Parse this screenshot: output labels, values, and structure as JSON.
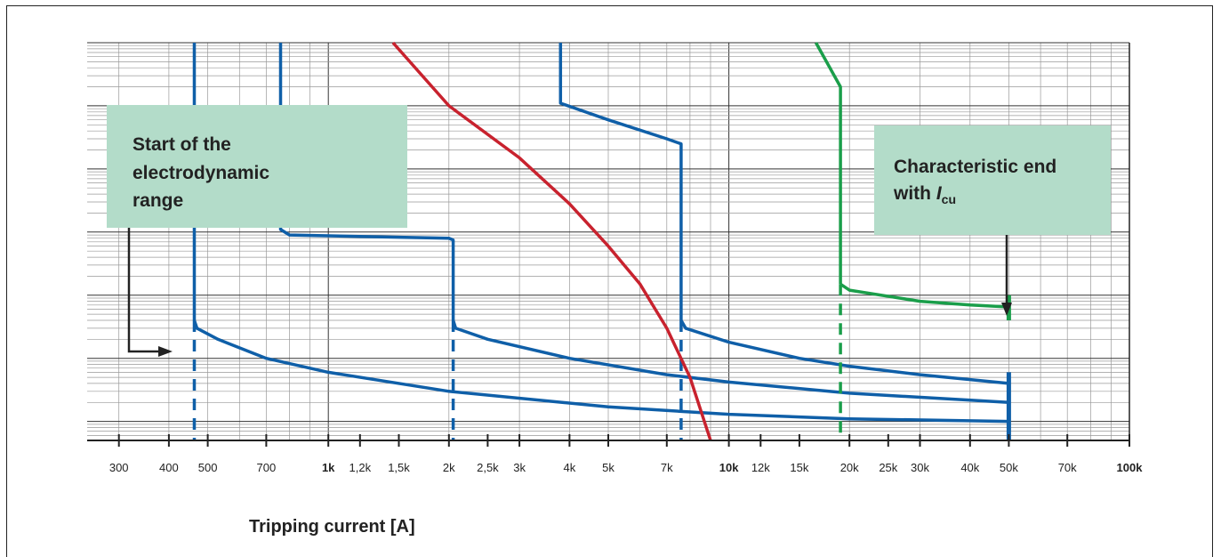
{
  "chart_data": {
    "type": "line",
    "title": "",
    "xlabel": "Tripping current [A]",
    "ylabel": "",
    "x_scale": "log",
    "xlim": [
      250,
      100000
    ],
    "y_scale": "log",
    "ylim": [
      0.0005,
      1000
    ],
    "grid": true,
    "x_tick_labels": [
      {
        "value": 300,
        "label": "300",
        "bold": false
      },
      {
        "value": 400,
        "label": "400",
        "bold": false
      },
      {
        "value": 500,
        "label": "500",
        "bold": false
      },
      {
        "value": 700,
        "label": "700",
        "bold": false
      },
      {
        "value": 1000,
        "label": "1k",
        "bold": true
      },
      {
        "value": 1200,
        "label": "1,2k",
        "bold": false
      },
      {
        "value": 1500,
        "label": "1,5k",
        "bold": false
      },
      {
        "value": 2000,
        "label": "2k",
        "bold": false
      },
      {
        "value": 2500,
        "label": "2,5k",
        "bold": false
      },
      {
        "value": 3000,
        "label": "3k",
        "bold": false
      },
      {
        "value": 4000,
        "label": "4k",
        "bold": false
      },
      {
        "value": 5000,
        "label": "5k",
        "bold": false
      },
      {
        "value": 7000,
        "label": "7k",
        "bold": false
      },
      {
        "value": 10000,
        "label": "10k",
        "bold": true
      },
      {
        "value": 12000,
        "label": "12k",
        "bold": false
      },
      {
        "value": 15000,
        "label": "15k",
        "bold": false
      },
      {
        "value": 20000,
        "label": "20k",
        "bold": false
      },
      {
        "value": 25000,
        "label": "25k",
        "bold": false
      },
      {
        "value": 30000,
        "label": "30k",
        "bold": false
      },
      {
        "value": 40000,
        "label": "40k",
        "bold": false
      },
      {
        "value": 50000,
        "label": "50k",
        "bold": false
      },
      {
        "value": 70000,
        "label": "70k",
        "bold": false
      },
      {
        "value": 100000,
        "label": "100k",
        "bold": true
      }
    ],
    "series": [
      {
        "color": "#0f5fa8",
        "width": 3.5,
        "segments": [
          {
            "dash": false,
            "points": [
              [
                463,
                1000
              ],
              [
                463,
                0.04
              ]
            ]
          },
          {
            "dash": true,
            "points": [
              [
                463,
                0.04
              ],
              [
                463,
                0.0005
              ]
            ]
          },
          {
            "dash": false,
            "points": [
              [
                463,
                0.04
              ],
              [
                470,
                0.03
              ],
              [
                530,
                0.02
              ],
              [
                700,
                0.01
              ],
              [
                1000,
                0.006
              ],
              [
                2000,
                0.003
              ],
              [
                5000,
                0.0017
              ],
              [
                10000,
                0.0013
              ],
              [
                20000,
                0.0011
              ],
              [
                50000,
                0.001
              ]
            ]
          }
        ]
      },
      {
        "color": "#0f5fa8",
        "width": 3.5,
        "segments": [
          {
            "dash": false,
            "points": [
              [
                760,
                1000
              ],
              [
                760,
                1.1
              ],
              [
                800,
                0.9
              ],
              [
                1200,
                0.85
              ],
              [
                2000,
                0.8
              ],
              [
                2050,
                0.75
              ],
              [
                2050,
                0.04
              ]
            ]
          },
          {
            "dash": true,
            "points": [
              [
                2050,
                0.04
              ],
              [
                2050,
                0.0005
              ]
            ]
          },
          {
            "dash": false,
            "points": [
              [
                2050,
                0.04
              ],
              [
                2080,
                0.03
              ],
              [
                2500,
                0.02
              ],
              [
                4000,
                0.01
              ],
              [
                7000,
                0.0055
              ],
              [
                10000,
                0.0042
              ],
              [
                20000,
                0.0028
              ],
              [
                50000,
                0.002
              ]
            ]
          }
        ]
      },
      {
        "color": "#0f5fa8",
        "width": 3.5,
        "segments": [
          {
            "dash": false,
            "points": [
              [
                3800,
                1000
              ],
              [
                3800,
                150
              ],
              [
                3800,
                110
              ],
              [
                5000,
                60
              ],
              [
                7000,
                30
              ],
              [
                7600,
                25
              ],
              [
                7600,
                0.04
              ]
            ]
          },
          {
            "dash": true,
            "points": [
              [
                7600,
                0.04
              ],
              [
                7600,
                0.0005
              ]
            ]
          },
          {
            "dash": false,
            "points": [
              [
                7600,
                0.04
              ],
              [
                7800,
                0.03
              ],
              [
                10000,
                0.018
              ],
              [
                15000,
                0.01
              ],
              [
                20000,
                0.0075
              ],
              [
                30000,
                0.0055
              ],
              [
                50000,
                0.004
              ]
            ]
          }
        ]
      },
      {
        "color": "#0f5fa8",
        "width": 5,
        "segments": [
          {
            "dash": false,
            "points": [
              [
                50000,
                0.0005
              ],
              [
                50000,
                0.006
              ]
            ]
          }
        ]
      },
      {
        "color": "#c8222e",
        "width": 3.5,
        "segments": [
          {
            "dash": false,
            "points": [
              [
                1450,
                1000
              ],
              [
                2000,
                100
              ],
              [
                3000,
                15
              ],
              [
                4000,
                2.8
              ],
              [
                5000,
                0.6
              ],
              [
                6000,
                0.15
              ],
              [
                7000,
                0.03
              ],
              [
                8000,
                0.005
              ],
              [
                9000,
                0.0005
              ]
            ]
          }
        ]
      },
      {
        "color": "#1a9e4a",
        "width": 3.5,
        "segments": [
          {
            "dash": false,
            "points": [
              [
                16500,
                1000
              ],
              [
                19000,
                200
              ],
              [
                19000,
                0.15
              ]
            ]
          },
          {
            "dash": true,
            "points": [
              [
                19000,
                0.15
              ],
              [
                19000,
                0.0005
              ]
            ]
          },
          {
            "dash": false,
            "points": [
              [
                19000,
                0.15
              ],
              [
                20000,
                0.12
              ],
              [
                30000,
                0.08
              ],
              [
                40000,
                0.07
              ],
              [
                50000,
                0.065
              ]
            ]
          }
        ]
      },
      {
        "color": "#1a9e4a",
        "width": 5,
        "segments": [
          {
            "dash": false,
            "points": [
              [
                50000,
                0.04
              ],
              [
                50000,
                0.1
              ]
            ]
          }
        ]
      }
    ],
    "annotations": [
      {
        "lines": [
          "Start of the",
          "electrodynamic",
          "range"
        ]
      },
      {
        "lines": [
          "Characteristic end",
          "with "
        ],
        "symbol": "I",
        "subscript": "cu"
      }
    ]
  }
}
